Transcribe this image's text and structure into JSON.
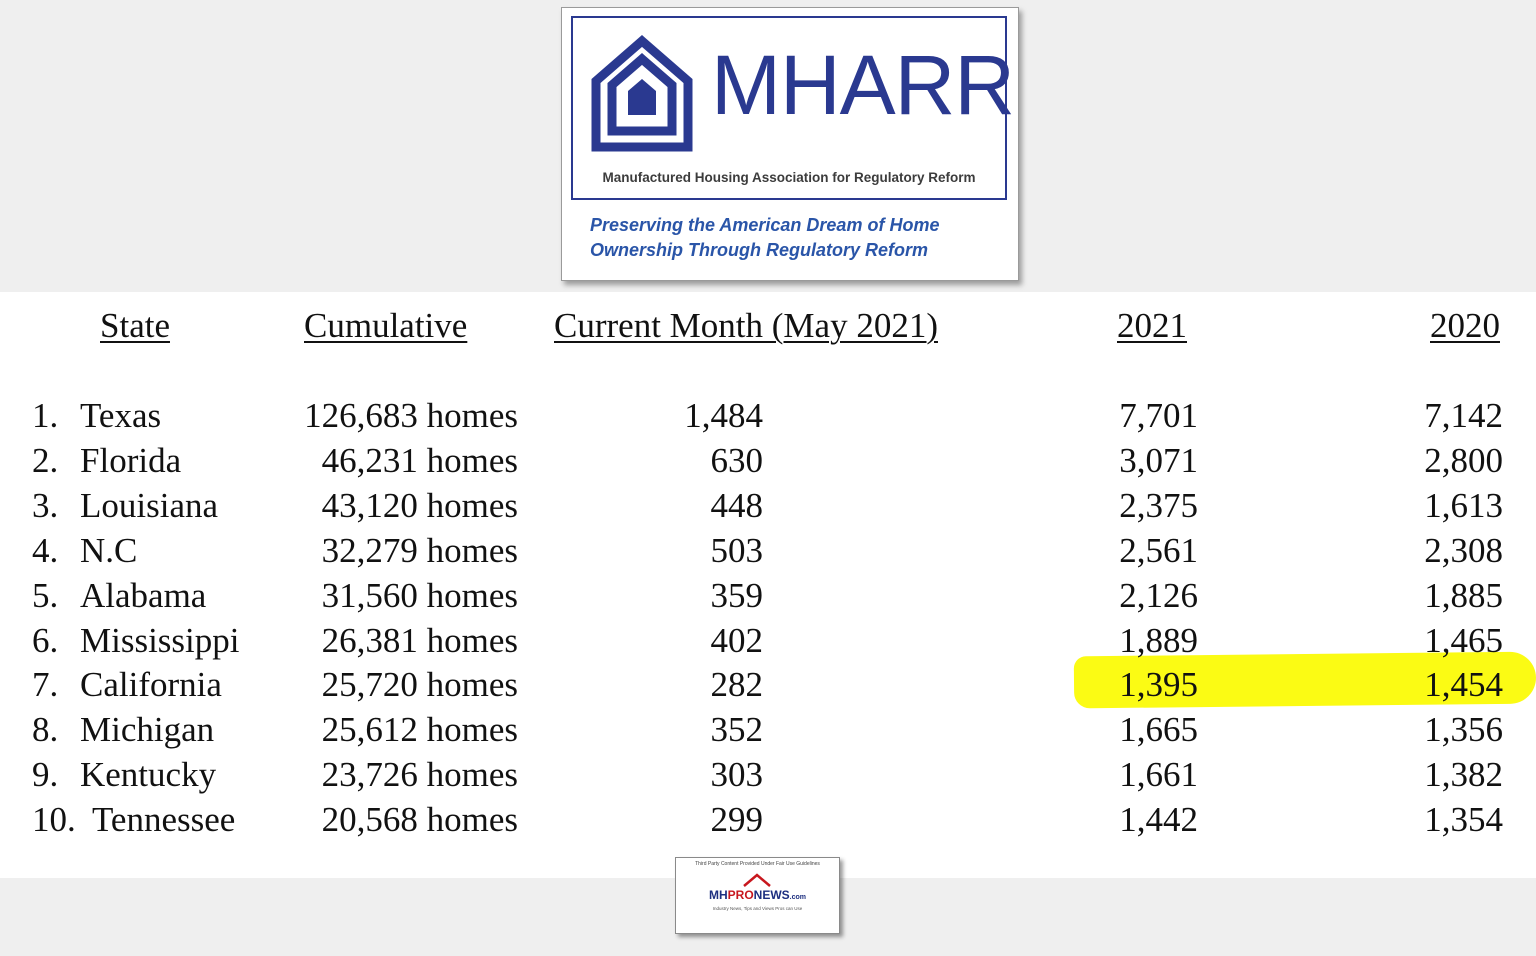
{
  "logo": {
    "name": "MHARR",
    "subtitle": "Manufactured Housing Association for Regulatory Reform",
    "tagline_line1": "Preserving the American Dream of Home",
    "tagline_line2": "Ownership Through Regulatory Reform"
  },
  "table": {
    "headers": {
      "state": "State",
      "cumulative": "Cumulative",
      "current_month": "Current Month (May 2021)",
      "y2021": "2021",
      "y2020": "2020"
    },
    "rows": [
      {
        "rank": "1.",
        "state": "Texas",
        "cumulative": "126,683 homes",
        "current": "1,484",
        "y2021": "7,701",
        "y2020": "7,142"
      },
      {
        "rank": "2.",
        "state": "Florida",
        "cumulative": "46,231 homes",
        "current": "630",
        "y2021": "3,071",
        "y2020": "2,800"
      },
      {
        "rank": "3.",
        "state": "Louisiana",
        "cumulative": "43,120 homes",
        "current": "448",
        "y2021": "2,375",
        "y2020": "1,613"
      },
      {
        "rank": "4.",
        "state": "N.C",
        "cumulative": "32,279 homes",
        "current": "503",
        "y2021": "2,561",
        "y2020": "2,308"
      },
      {
        "rank": "5.",
        "state": "Alabama",
        "cumulative": "31,560 homes",
        "current": "359",
        "y2021": "2,126",
        "y2020": "1,885"
      },
      {
        "rank": "6.",
        "state": "Mississippi",
        "cumulative": "26,381 homes",
        "current": "402",
        "y2021": "1,889",
        "y2020": "1,465"
      },
      {
        "rank": "7.",
        "state": "California",
        "cumulative": "25,720 homes",
        "current": "282",
        "y2021": "1,395",
        "y2020": "1,454",
        "highlighted": true
      },
      {
        "rank": "8.",
        "state": "Michigan",
        "cumulative": "25,612 homes",
        "current": "352",
        "y2021": "1,665",
        "y2020": "1,356"
      },
      {
        "rank": "9.",
        "state": "Kentucky",
        "cumulative": "23,726 homes",
        "current": "303",
        "y2021": "1,661",
        "y2020": "1,382"
      },
      {
        "rank": "10.",
        "state": "Tennessee",
        "cumulative": "20,568 homes",
        "current": "299",
        "y2021": "1,442",
        "y2020": "1,354"
      }
    ]
  },
  "badge": {
    "top_text": "Third Party Content Provided Under Fair Use Guidelines",
    "word_a": "MH",
    "word_b": "PRO",
    "word_c": "NEWS",
    "domain": ".com",
    "sub_text": "Industry News, Tips and Views Pros can Use"
  },
  "colors": {
    "brand_blue": "#2a3990",
    "tagline_blue": "#2a55a8",
    "highlight": "#fbfb14"
  }
}
